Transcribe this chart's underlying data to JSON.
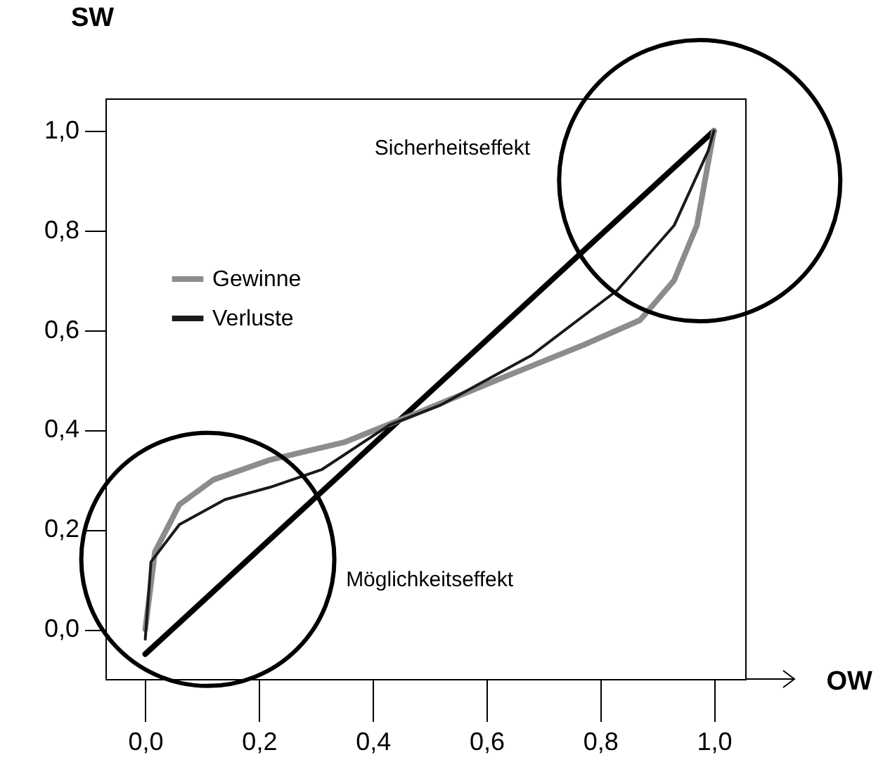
{
  "chart_data": {
    "type": "line",
    "xlabel": "OW",
    "ylabel": "SW",
    "xlim": [
      -0.07,
      1.055
    ],
    "ylim": [
      -0.1,
      1.065
    ],
    "xticks": [
      {
        "value": 0,
        "label": "0,0"
      },
      {
        "value": 0.2,
        "label": "0,2"
      },
      {
        "value": 0.4,
        "label": "0,4"
      },
      {
        "value": 0.6,
        "label": "0,6"
      },
      {
        "value": 0.8,
        "label": "0,8"
      },
      {
        "value": 1,
        "label": "1,0"
      }
    ],
    "yticks": [
      {
        "value": 0,
        "label": "0,0"
      },
      {
        "value": 0.2,
        "label": "0,2"
      },
      {
        "value": 0.4,
        "label": "0,4"
      },
      {
        "value": 0.6,
        "label": "0,6"
      },
      {
        "value": 0.8,
        "label": "0,8"
      },
      {
        "value": 1,
        "label": "1,0"
      }
    ],
    "series": [
      {
        "color": "#000000",
        "x": [
          0,
          1
        ],
        "values": [
          -0.05,
          1.0
        ]
      },
      {
        "name": "Gewinne",
        "color": "#8c8c8c",
        "x": [
          0,
          0.017,
          0.06,
          0.12,
          0.22,
          0.35,
          0.47,
          0.64,
          0.77,
          0.87,
          0.93,
          0.97,
          1.0
        ],
        "values": [
          0.0,
          0.155,
          0.25,
          0.3,
          0.34,
          0.375,
          0.43,
          0.51,
          0.57,
          0.62,
          0.7,
          0.81,
          1.0
        ]
      },
      {
        "name": "Verluste",
        "color": "#1a1a1a",
        "x": [
          0,
          0.01,
          0.06,
          0.14,
          0.22,
          0.31,
          0.43,
          0.52,
          0.68,
          0.83,
          0.93,
          0.99,
          1.0
        ],
        "values": [
          -0.02,
          0.135,
          0.21,
          0.26,
          0.285,
          0.32,
          0.41,
          0.45,
          0.55,
          0.68,
          0.81,
          0.96,
          1.0
        ]
      }
    ],
    "annotations": [
      "Sicherheitseffekt",
      "Möglichkeitseffekt"
    ],
    "legend": "top left",
    "grid": false,
    "marker": "none",
    "line_style": "solid"
  }
}
